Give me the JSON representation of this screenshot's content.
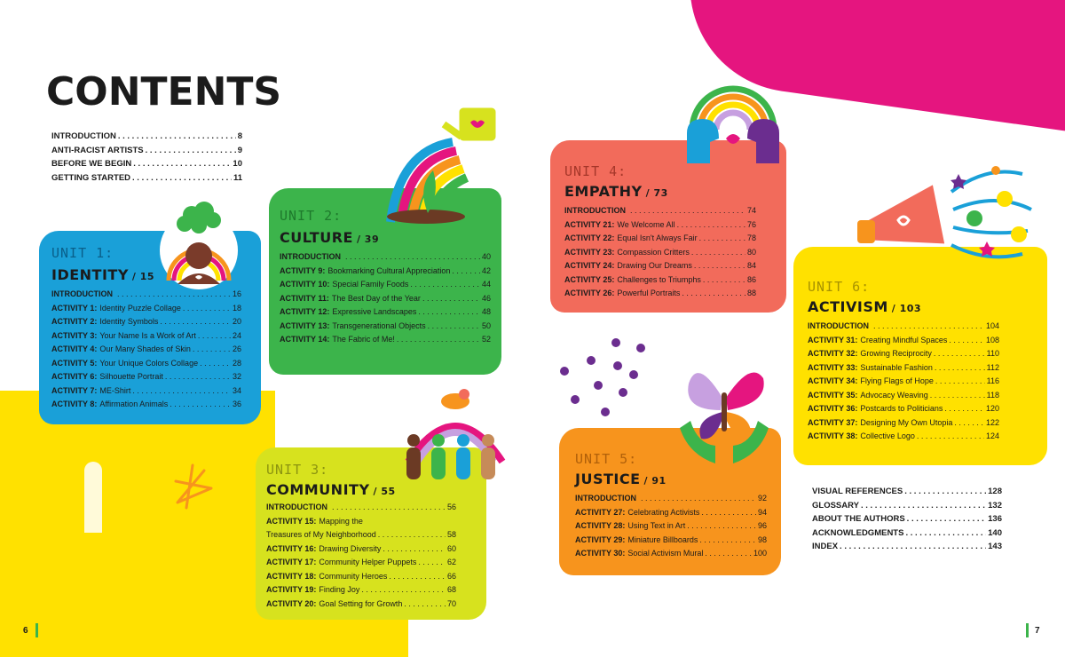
{
  "left_page": {
    "title": "CONTENTS",
    "front_matter": [
      {
        "title": "INTRODUCTION",
        "page": "8"
      },
      {
        "title": "ANTI-RACIST ARTISTS",
        "page": "9"
      },
      {
        "title": "BEFORE WE BEGIN",
        "page": "10"
      },
      {
        "title": "GETTING STARTED",
        "page": "11"
      }
    ],
    "page_number": "6"
  },
  "right_page": {
    "back_matter": [
      {
        "title": "VISUAL REFERENCES",
        "page": "128"
      },
      {
        "title": "GLOSSARY",
        "page": "132"
      },
      {
        "title": "ABOUT THE AUTHORS",
        "page": "136"
      },
      {
        "title": "ACKNOWLEDGMENTS",
        "page": "140"
      },
      {
        "title": "INDEX",
        "page": "143"
      }
    ],
    "page_number": "7"
  },
  "units": [
    {
      "label": "UNIT 1:",
      "name": "IDENTITY",
      "page": "/ 15",
      "color": "#1aa0d8",
      "items": [
        {
          "bold": "INTRODUCTION",
          "text": "",
          "page": "16"
        },
        {
          "bold": "ACTIVITY 1:",
          "text": "Identity Puzzle Collage",
          "page": "18"
        },
        {
          "bold": "ACTIVITY 2:",
          "text": "Identity Symbols",
          "page": "20"
        },
        {
          "bold": "ACTIVITY 3:",
          "text": "Your Name Is a Work of Art",
          "page": "24"
        },
        {
          "bold": "ACTIVITY 4:",
          "text": "Our Many Shades of Skin",
          "page": "26"
        },
        {
          "bold": "ACTIVITY 5:",
          "text": "Your Unique Colors Collage",
          "page": "28"
        },
        {
          "bold": "ACTIVITY 6:",
          "text": "Silhouette Portrait",
          "page": "32"
        },
        {
          "bold": "ACTIVITY 7:",
          "text": "ME-Shirt",
          "page": "34"
        },
        {
          "bold": "ACTIVITY 8:",
          "text": "Affirmation Animals",
          "page": "36"
        }
      ]
    },
    {
      "label": "UNIT 2:",
      "name": "CULTURE",
      "page": "/ 39",
      "color": "#3cb44b",
      "items": [
        {
          "bold": "INTRODUCTION",
          "text": "",
          "page": "40"
        },
        {
          "bold": "ACTIVITY 9:",
          "text": "Bookmarking Cultural Appreciation",
          "page": "42"
        },
        {
          "bold": "ACTIVITY 10:",
          "text": "Special Family Foods",
          "page": "44"
        },
        {
          "bold": "ACTIVITY 11:",
          "text": "The Best Day of the Year",
          "page": "46"
        },
        {
          "bold": "ACTIVITY 12:",
          "text": "Expressive Landscapes",
          "page": "48"
        },
        {
          "bold": "ACTIVITY 13:",
          "text": "Transgenerational Objects",
          "page": "50"
        },
        {
          "bold": "ACTIVITY 14:",
          "text": "The Fabric of Me!",
          "page": "52"
        }
      ]
    },
    {
      "label": "UNIT 3:",
      "name": "COMMUNITY",
      "page": "/ 55",
      "color": "#d7e21e",
      "items": [
        {
          "bold": "INTRODUCTION",
          "text": "",
          "page": "56"
        },
        {
          "bold": "ACTIVITY 15:",
          "text": "Mapping the",
          "text2": "Treasures of My Neighborhood",
          "page": "58"
        },
        {
          "bold": "ACTIVITY 16:",
          "text": "Drawing Diversity",
          "page": "60"
        },
        {
          "bold": "ACTIVITY 17:",
          "text": "Community Helper Puppets",
          "page": "62"
        },
        {
          "bold": "ACTIVITY 18:",
          "text": "Community Heroes",
          "page": "66"
        },
        {
          "bold": "ACTIVITY 19:",
          "text": "Finding Joy",
          "page": "68"
        },
        {
          "bold": "ACTIVITY 20:",
          "text": "Goal Setting for Growth",
          "page": "70"
        }
      ]
    },
    {
      "label": "UNIT 4:",
      "name": "EMPATHY",
      "page": "/ 73",
      "color": "#f26b5b",
      "items": [
        {
          "bold": "INTRODUCTION",
          "text": "",
          "page": "74"
        },
        {
          "bold": "ACTIVITY 21:",
          "text": "We Welcome All",
          "page": "76"
        },
        {
          "bold": "ACTIVITY 22:",
          "text": "Equal Isn't Always Fair",
          "page": "78"
        },
        {
          "bold": "ACTIVITY 23:",
          "text": "Compassion Critters",
          "page": "80"
        },
        {
          "bold": "ACTIVITY 24:",
          "text": "Drawing Our Dreams",
          "page": "84"
        },
        {
          "bold": "ACTIVITY 25:",
          "text": "Challenges to Triumphs",
          "page": "86"
        },
        {
          "bold": "ACTIVITY 26:",
          "text": "Powerful Portraits",
          "page": "88"
        }
      ]
    },
    {
      "label": "UNIT 5:",
      "name": "JUSTICE",
      "page": "/ 91",
      "color": "#f7941d",
      "items": [
        {
          "bold": "INTRODUCTION",
          "text": "",
          "page": "92"
        },
        {
          "bold": "ACTIVITY 27:",
          "text": "Celebrating Activists",
          "page": "94"
        },
        {
          "bold": "ACTIVITY 28:",
          "text": "Using Text in Art",
          "page": "96"
        },
        {
          "bold": "ACTIVITY 29:",
          "text": "Miniature Billboards",
          "page": "98"
        },
        {
          "bold": "ACTIVITY 30:",
          "text": "Social Activism Mural",
          "page": "100"
        }
      ]
    },
    {
      "label": "UNIT 6:",
      "name": "ACTIVISM",
      "page": "/ 103",
      "color": "#ffe100",
      "items": [
        {
          "bold": "INTRODUCTION",
          "text": "",
          "page": "104"
        },
        {
          "bold": "ACTIVITY 31:",
          "text": "Creating Mindful Spaces",
          "page": "108"
        },
        {
          "bold": "ACTIVITY 32:",
          "text": "Growing Reciprocity",
          "page": "110"
        },
        {
          "bold": "ACTIVITY 33:",
          "text": "Sustainable Fashion",
          "page": "112"
        },
        {
          "bold": "ACTIVITY 34:",
          "text": "Flying Flags of Hope",
          "page": "116"
        },
        {
          "bold": "ACTIVITY 35:",
          "text": "Advocacy Weaving",
          "page": "118"
        },
        {
          "bold": "ACTIVITY 36:",
          "text": "Postcards to Politicians",
          "page": "120"
        },
        {
          "bold": "ACTIVITY 37:",
          "text": "Designing My Own Utopia",
          "page": "122"
        },
        {
          "bold": "ACTIVITY 38:",
          "text": "Collective Logo",
          "page": "124"
        }
      ]
    }
  ]
}
